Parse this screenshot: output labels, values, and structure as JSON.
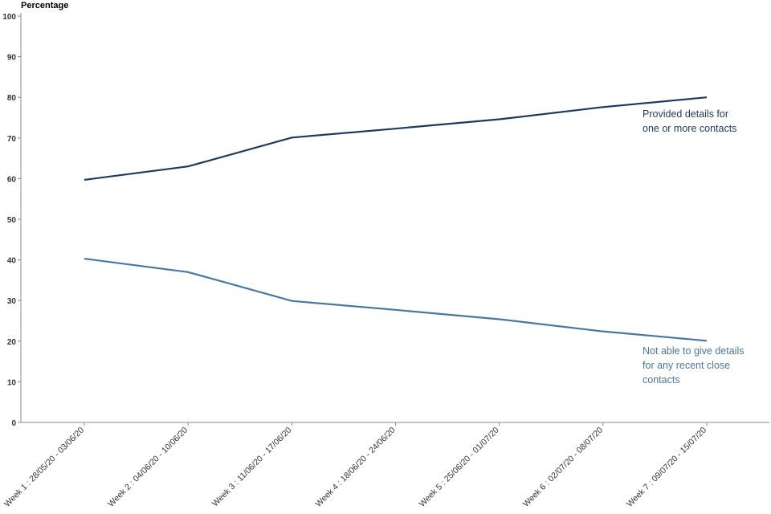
{
  "chart_data": {
    "type": "line",
    "y_label": "Percentage",
    "categories": [
      "Week 1 : 28/05/20 - 03/06/20",
      "Week 2 : 04/06/20 - 10/06/20",
      "Week 3 : 11/06/20 - 17/06/20",
      "Week 4 : 18/06/20 - 24/06/20",
      "Week 5 : 25/06/20 - 01/07/20",
      "Week 6 : 02/07/20 - 08/07/20",
      "Week 7 : 09/07/20 - 15/07/20"
    ],
    "series": [
      {
        "name": "Provided details for one or more contacts",
        "color": "#1d3a5c",
        "values": [
          59.7,
          63,
          70.1,
          72.3,
          74.6,
          77.6,
          80
        ]
      },
      {
        "name": "Not able to give details for any recent close contacts",
        "color": "#4a76a0",
        "values": [
          40.3,
          37,
          29.9,
          27.7,
          25.4,
          22.4,
          20.1
        ]
      }
    ],
    "ylim": [
      0,
      100
    ],
    "yticks": [
      0,
      10,
      20,
      30,
      40,
      50,
      60,
      70,
      80,
      90,
      100
    ],
    "grid": false
  }
}
